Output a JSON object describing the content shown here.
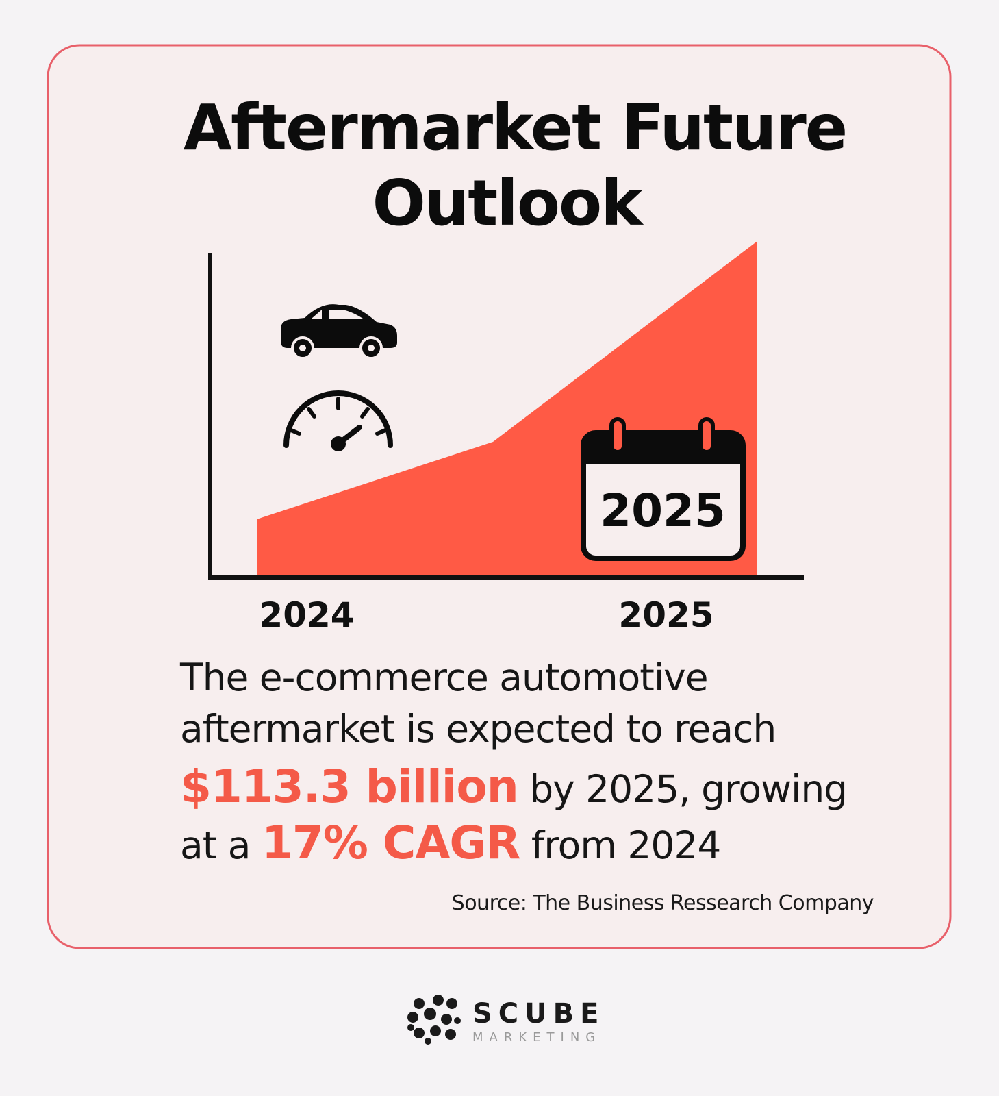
{
  "title": [
    "Aftermarket Future",
    "Outlook"
  ],
  "illustration": {
    "x_labels": [
      "2024",
      "2025"
    ],
    "calendar_label": "2025"
  },
  "statement": [
    [
      {
        "text": "The e-commerce automotive"
      }
    ],
    [
      {
        "text": "aftermarket is expected to reach"
      }
    ],
    [
      {
        "text": "$113.3 billion",
        "highlight": true
      },
      {
        "text": " by 2025, growing"
      }
    ],
    [
      {
        "text": "at a "
      },
      {
        "text": "17% CAGR",
        "highlight": true
      },
      {
        "text": " from 2024"
      }
    ]
  ],
  "source": "Source: The Business Ressearch Company",
  "logo": {
    "name": "SCUBE",
    "tagline": "MARKETING"
  }
}
